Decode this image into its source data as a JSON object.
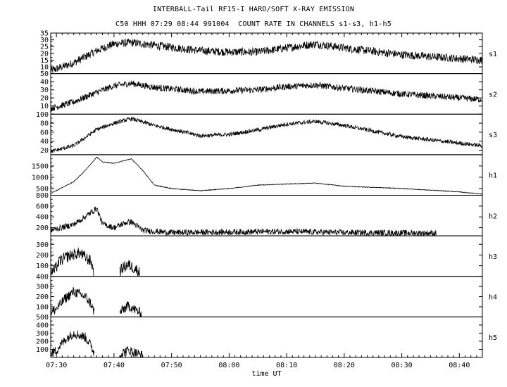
{
  "header": {
    "title": "INTERBALL-Tail RF15-I HARD/SOFT X-RAY EMISSION",
    "subtitle": "C50 HHH 07:29 08:44 991004  COUNT RATE IN CHANNELS s1-s3, h1-h5"
  },
  "chart_data": {
    "type": "line",
    "title": "INTERBALL-Tail RF15-I HARD/SOFT X-RAY EMISSION",
    "subtitle": "C50 HHH 07:29 08:44 991004  COUNT RATE IN CHANNELS s1-s3, h1-h5",
    "xlabel": "time UT",
    "xlim_minutes_after_0729": [
      0,
      75
    ],
    "x_ticks": [
      "07:30",
      "07:40",
      "07:50",
      "08:00",
      "08:10",
      "08:20",
      "08:30",
      "08:40"
    ],
    "grid": false,
    "panels": [
      {
        "name": "s1",
        "ylim": [
          5,
          35
        ],
        "yticks": [
          "35",
          "30",
          "25",
          "20",
          "15",
          "10"
        ],
        "noise": 3.0,
        "profile": [
          [
            "07:29",
            7
          ],
          [
            "07:33",
            13
          ],
          [
            "07:37",
            22
          ],
          [
            "07:40",
            27
          ],
          [
            "07:43",
            28
          ],
          [
            "07:47",
            26
          ],
          [
            "07:55",
            22
          ],
          [
            "08:00",
            21
          ],
          [
            "08:05",
            21
          ],
          [
            "08:10",
            24
          ],
          [
            "08:15",
            27
          ],
          [
            "08:20",
            24
          ],
          [
            "08:30",
            19
          ],
          [
            "08:44",
            15
          ]
        ]
      },
      {
        "name": "s2",
        "ylim": [
          0,
          50
        ],
        "yticks": [
          "50",
          "40",
          "30",
          "20",
          "10"
        ],
        "noise": 4.0,
        "profile": [
          [
            "07:29",
            7
          ],
          [
            "07:33",
            15
          ],
          [
            "07:37",
            27
          ],
          [
            "07:40",
            35
          ],
          [
            "07:43",
            38
          ],
          [
            "07:47",
            33
          ],
          [
            "07:55",
            28
          ],
          [
            "08:00",
            29
          ],
          [
            "08:05",
            30
          ],
          [
            "08:10",
            34
          ],
          [
            "08:15",
            36
          ],
          [
            "08:20",
            32
          ],
          [
            "08:30",
            25
          ],
          [
            "08:44",
            18
          ]
        ]
      },
      {
        "name": "s3",
        "ylim": [
          10,
          100
        ],
        "yticks": [
          "100",
          "80",
          "60",
          "40",
          "20"
        ],
        "noise": 4.5,
        "profile": [
          [
            "07:29",
            17
          ],
          [
            "07:33",
            30
          ],
          [
            "07:37",
            66
          ],
          [
            "07:40",
            80
          ],
          [
            "07:43",
            90
          ],
          [
            "07:47",
            75
          ],
          [
            "07:55",
            52
          ],
          [
            "08:00",
            55
          ],
          [
            "08:05",
            65
          ],
          [
            "08:10",
            78
          ],
          [
            "08:15",
            84
          ],
          [
            "08:20",
            75
          ],
          [
            "08:30",
            50
          ],
          [
            "08:44",
            30
          ]
        ]
      },
      {
        "name": "h1",
        "ylim": [
          200,
          2000
        ],
        "yticks": [
          "1500",
          "1000",
          "500"
        ],
        "noise": 15,
        "profile": [
          [
            "07:29",
            280
          ],
          [
            "07:33",
            800
          ],
          [
            "07:35",
            1300
          ],
          [
            "07:37",
            1900
          ],
          [
            "07:38",
            1680
          ],
          [
            "07:40",
            1620
          ],
          [
            "07:42",
            1750
          ],
          [
            "07:43",
            1820
          ],
          [
            "07:45",
            1300
          ],
          [
            "07:47",
            650
          ],
          [
            "07:50",
            500
          ],
          [
            "07:55",
            400
          ],
          [
            "08:00",
            500
          ],
          [
            "08:05",
            650
          ],
          [
            "08:10",
            700
          ],
          [
            "08:15",
            740
          ],
          [
            "08:20",
            600
          ],
          [
            "08:30",
            500
          ],
          [
            "08:40",
            350
          ],
          [
            "08:44",
            250
          ]
        ]
      },
      {
        "name": "h2",
        "ylim": [
          50,
          800
        ],
        "yticks": [
          "800",
          "600",
          "400",
          "200"
        ],
        "noise": 55,
        "end": "08:36",
        "profile": [
          [
            "07:29",
            150
          ],
          [
            "07:33",
            260
          ],
          [
            "07:35",
            400
          ],
          [
            "07:37",
            560
          ],
          [
            "07:38",
            270
          ],
          [
            "07:40",
            200
          ],
          [
            "07:42",
            290
          ],
          [
            "07:43",
            310
          ],
          [
            "07:45",
            150
          ],
          [
            "07:50",
            110
          ],
          [
            "08:00",
            120
          ],
          [
            "08:10",
            130
          ],
          [
            "08:20",
            110
          ],
          [
            "08:36",
            100
          ]
        ]
      },
      {
        "name": "h3",
        "ylim": [
          0,
          380
        ],
        "yticks": [
          "300",
          "200",
          "100"
        ],
        "noise": 55,
        "segments": [
          [
            [
              "07:29",
              40
            ],
            [
              "07:29.7",
              60
            ],
            [
              "07:30.5",
              140
            ],
            [
              "07:32",
              190
            ],
            [
              "07:34",
              220
            ],
            [
              "07:36",
              140
            ],
            [
              "07:36.5",
              40
            ]
          ],
          [
            [
              "07:41",
              40
            ],
            [
              "07:41.5",
              80
            ],
            [
              "07:42.5",
              110
            ],
            [
              "07:44",
              60
            ],
            [
              "07:44.5",
              30
            ]
          ]
        ]
      },
      {
        "name": "h4",
        "ylim": [
          0,
          400
        ],
        "yticks": [
          "400",
          "300",
          "200",
          "100"
        ],
        "noise": 50,
        "segments": [
          [
            [
              "07:29",
              40
            ],
            [
              "07:30",
              80
            ],
            [
              "07:31.5",
              180
            ],
            [
              "07:33",
              250
            ],
            [
              "07:35",
              200
            ],
            [
              "07:36",
              130
            ],
            [
              "07:36.6",
              40
            ]
          ],
          [
            [
              "07:41",
              40
            ],
            [
              "07:41.5",
              70
            ],
            [
              "07:42.5",
              110
            ],
            [
              "07:44",
              60
            ],
            [
              "07:44.8",
              30
            ]
          ]
        ]
      },
      {
        "name": "h5",
        "ylim": [
          0,
          500
        ],
        "yticks": [
          "500",
          "400",
          "300",
          "200",
          "100"
        ],
        "noise": 60,
        "segments": [
          [
            [
              "07:29",
              40
            ],
            [
              "07:30",
              90
            ],
            [
              "07:31.5",
              220
            ],
            [
              "07:33",
              300
            ],
            [
              "07:35",
              250
            ],
            [
              "07:36",
              150
            ],
            [
              "07:36.6",
              40
            ]
          ],
          [
            [
              "07:41",
              30
            ],
            [
              "07:41.5",
              60
            ],
            [
              "07:42.5",
              90
            ],
            [
              "07:44",
              50
            ],
            [
              "07:45",
              20
            ]
          ]
        ]
      }
    ]
  }
}
